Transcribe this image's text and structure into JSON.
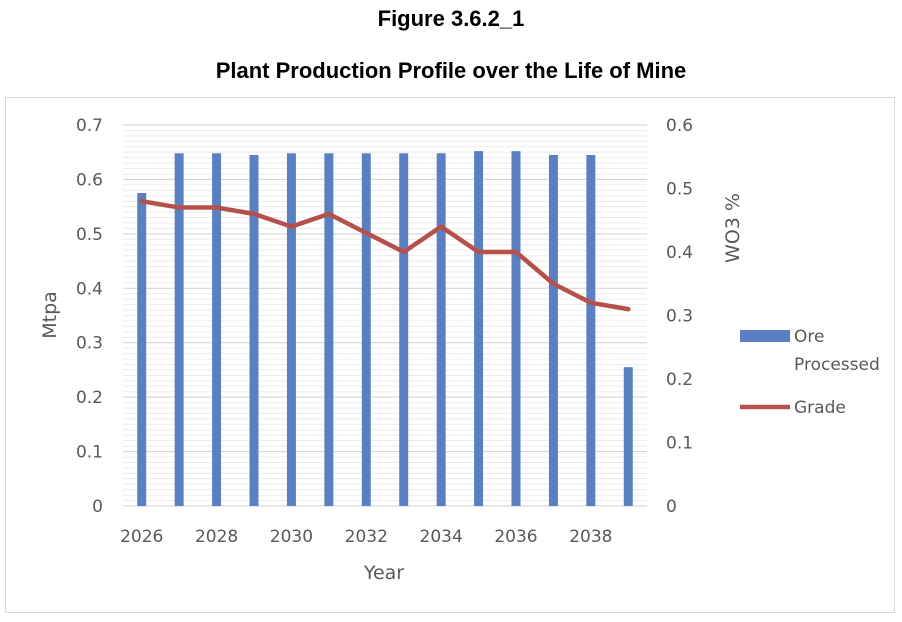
{
  "figure_label": "Figure 3.6.2_1",
  "chart_data": {
    "type": "bar",
    "title": "Plant Production Profile over the Life of Mine",
    "xlabel": "Year",
    "ylabel": "Mtpa",
    "y2label": "WO3 %",
    "x": [
      2026,
      2027,
      2028,
      2029,
      2030,
      2031,
      2032,
      2033,
      2034,
      2035,
      2036,
      2037,
      2038,
      2039
    ],
    "x_tick_labels": [
      "2026",
      "2028",
      "2030",
      "2032",
      "2034",
      "2036",
      "2038"
    ],
    "ylim": [
      0,
      0.7
    ],
    "y_ticks": [
      "0",
      "0.1",
      "0.2",
      "0.3",
      "0.4",
      "0.5",
      "0.6",
      "0.7"
    ],
    "y2lim": [
      0,
      0.6
    ],
    "y2_ticks": [
      "0",
      "0.1",
      "0.2",
      "0.3",
      "0.4",
      "0.5",
      "0.6"
    ],
    "grid": true,
    "legend_position": "right",
    "series": [
      {
        "name": "Ore Processed",
        "legend_lines": [
          "Ore",
          "Processed"
        ],
        "type": "bar",
        "axis": "left",
        "color": "#5b80c2",
        "values": [
          0.575,
          0.648,
          0.648,
          0.645,
          0.648,
          0.648,
          0.648,
          0.648,
          0.648,
          0.652,
          0.652,
          0.645,
          0.645,
          0.255
        ]
      },
      {
        "name": "Grade",
        "legend_lines": [
          "Grade"
        ],
        "type": "line",
        "axis": "right",
        "color": "#b5514a",
        "values": [
          0.48,
          0.47,
          0.47,
          0.46,
          0.44,
          0.46,
          0.43,
          0.4,
          0.44,
          0.4,
          0.4,
          0.35,
          0.32,
          0.31
        ]
      }
    ]
  }
}
